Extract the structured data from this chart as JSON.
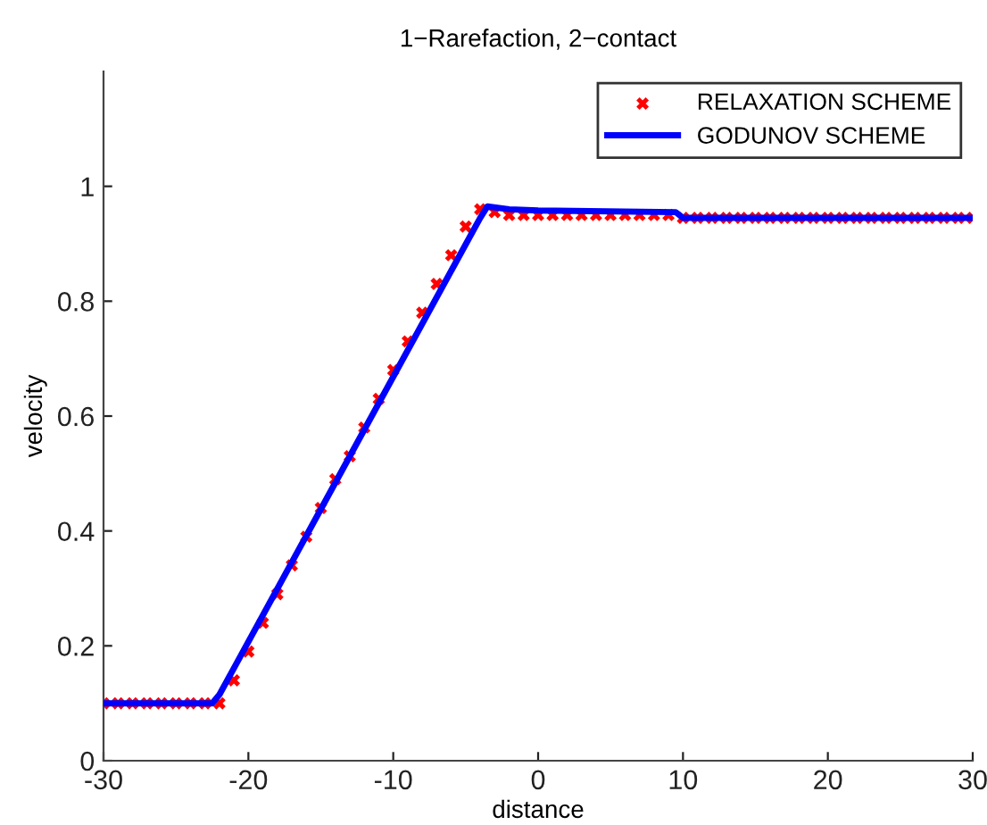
{
  "chart_data": {
    "type": "scatter",
    "title": "1−Rarefaction, 2−contact",
    "xlabel": "distance",
    "ylabel": "velocity",
    "xlim": [
      -30,
      30
    ],
    "ylim": [
      0,
      1.2
    ],
    "xticks": [
      -30,
      -20,
      -10,
      0,
      10,
      20,
      30
    ],
    "yticks": [
      0,
      0.2,
      0.4,
      0.6,
      0.8,
      1
    ],
    "grid": false,
    "legend": "top right",
    "series": [
      {
        "name": "RELAXATION SCHEME",
        "marker": "cross",
        "color": "#ff0000",
        "x": [
          -30,
          -29,
          -28,
          -27,
          -26,
          -25,
          -24,
          -23,
          -22,
          -21,
          -20,
          -19,
          -18,
          -17,
          -16,
          -15,
          -14,
          -13,
          -12,
          -11,
          -10,
          -9,
          -8,
          -7,
          -6,
          -5,
          -4,
          -3,
          -2,
          -1,
          0,
          1,
          2,
          3,
          4,
          5,
          6,
          7,
          8,
          9,
          10,
          11,
          12,
          13,
          14,
          15,
          16,
          17,
          18,
          19,
          20,
          21,
          22,
          23,
          24,
          25,
          26,
          27,
          28,
          29,
          30
        ],
        "values": [
          0.1,
          0.1,
          0.1,
          0.1,
          0.1,
          0.1,
          0.1,
          0.1,
          0.1,
          0.14,
          0.19,
          0.24,
          0.29,
          0.34,
          0.39,
          0.44,
          0.49,
          0.53,
          0.58,
          0.63,
          0.68,
          0.73,
          0.78,
          0.83,
          0.88,
          0.93,
          0.96,
          0.955,
          0.95,
          0.95,
          0.95,
          0.95,
          0.95,
          0.95,
          0.95,
          0.95,
          0.95,
          0.95,
          0.95,
          0.95,
          0.945,
          0.945,
          0.945,
          0.945,
          0.945,
          0.945,
          0.945,
          0.945,
          0.945,
          0.945,
          0.945,
          0.945,
          0.945,
          0.945,
          0.945,
          0.945,
          0.945,
          0.945,
          0.945,
          0.945,
          0.945
        ]
      },
      {
        "name": "GODUNOV SCHEME",
        "type": "line",
        "marker": "none",
        "line_style": "solid",
        "color": "#0000ff",
        "x": [
          -30,
          -22.5,
          -22,
          -13,
          -4,
          -3.5,
          -2,
          0,
          9.5,
          10,
          30
        ],
        "values": [
          0.1,
          0.1,
          0.115,
          0.53,
          0.945,
          0.965,
          0.96,
          0.958,
          0.955,
          0.945,
          0.945
        ]
      }
    ]
  }
}
